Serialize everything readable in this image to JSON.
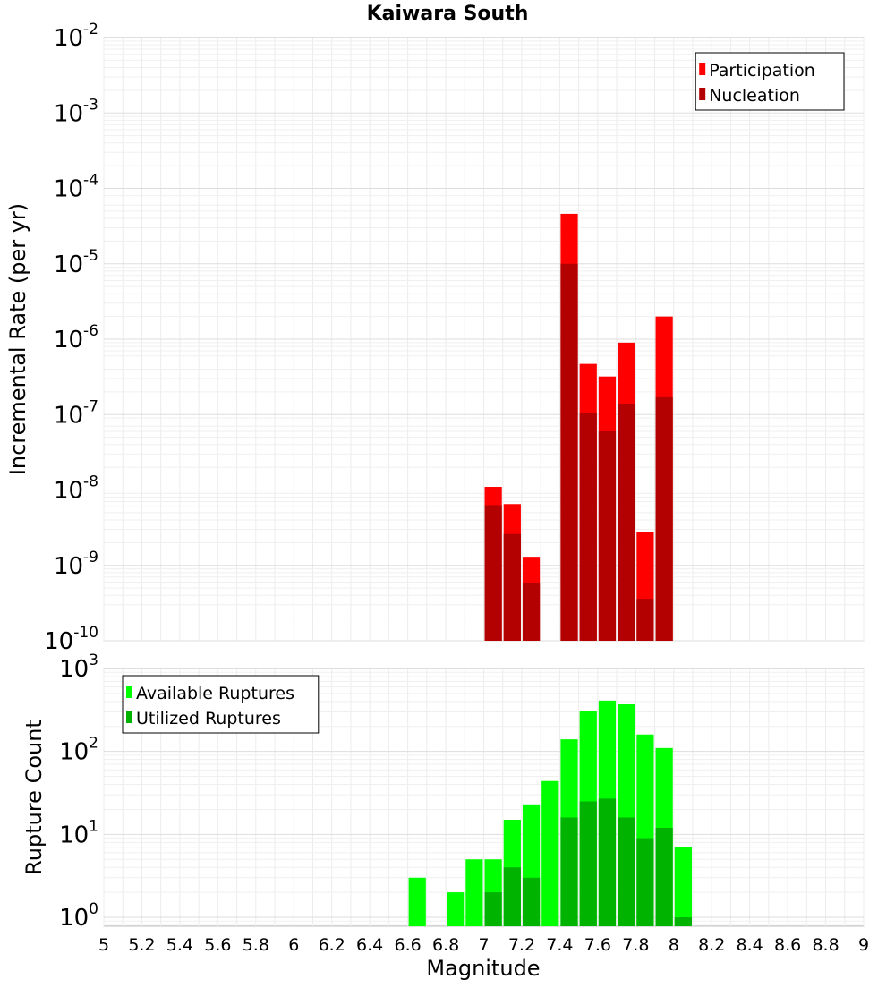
{
  "chart_data": [
    {
      "type": "bar",
      "title": "Kaiwara South",
      "xlabel": "",
      "ylabel": "Incremental Rate (per yr)",
      "yscale": "log",
      "ylim": [
        1e-10,
        0.01
      ],
      "xlim": [
        5,
        9
      ],
      "grid": true,
      "legend_position": "top-right",
      "bar_width": 0.1,
      "y_ticks": [
        {
          "base": "10",
          "exp": "-10",
          "value": 1e-10
        },
        {
          "base": "10",
          "exp": "-9",
          "value": 1e-09
        },
        {
          "base": "10",
          "exp": "-8",
          "value": 1e-08
        },
        {
          "base": "10",
          "exp": "-7",
          "value": 1e-07
        },
        {
          "base": "10",
          "exp": "-6",
          "value": 1e-06
        },
        {
          "base": "10",
          "exp": "-5",
          "value": 1e-05
        },
        {
          "base": "10",
          "exp": "-4",
          "value": 0.0001
        },
        {
          "base": "10",
          "exp": "-3",
          "value": 0.001
        },
        {
          "base": "10",
          "exp": "-2",
          "value": 0.01
        }
      ],
      "series": [
        {
          "name": "Participation",
          "color": "#ff0000",
          "x": [
            7.05,
            7.15,
            7.25,
            7.45,
            7.55,
            7.65,
            7.75,
            7.85,
            7.95
          ],
          "values": [
            1.1e-08,
            6.5e-09,
            1.3e-09,
            4.6e-05,
            4.7e-07,
            3.2e-07,
            9e-07,
            2.8e-09,
            2e-06
          ]
        },
        {
          "name": "Nucleation",
          "color": "#b30000",
          "x": [
            7.05,
            7.15,
            7.25,
            7.45,
            7.55,
            7.65,
            7.75,
            7.85,
            7.95
          ],
          "values": [
            6.3e-09,
            2.6e-09,
            5.8e-10,
            1e-05,
            1.05e-07,
            6e-08,
            1.4e-07,
            3.6e-10,
            1.7e-07
          ]
        }
      ]
    },
    {
      "type": "bar",
      "title": "",
      "xlabel": "Magnitude",
      "ylabel": "Rupture Count",
      "yscale": "log",
      "ylim": [
        0.78,
        1000
      ],
      "xlim": [
        5,
        9
      ],
      "grid": true,
      "legend_position": "top-left",
      "bar_width": 0.1,
      "x_ticks": [
        "5",
        "5.2",
        "5.4",
        "5.6",
        "5.8",
        "6",
        "6.2",
        "6.4",
        "6.6",
        "6.8",
        "7",
        "7.2",
        "7.4",
        "7.6",
        "7.8",
        "8",
        "8.2",
        "8.4",
        "8.6",
        "8.8",
        "9"
      ],
      "y_ticks": [
        {
          "base": "10",
          "exp": "0",
          "value": 1
        },
        {
          "base": "10",
          "exp": "1",
          "value": 10
        },
        {
          "base": "10",
          "exp": "2",
          "value": 100
        },
        {
          "base": "10",
          "exp": "3",
          "value": 1000
        }
      ],
      "series": [
        {
          "name": "Available Ruptures",
          "color": "#00ff00",
          "x": [
            6.65,
            6.85,
            6.95,
            7.05,
            7.15,
            7.25,
            7.35,
            7.45,
            7.55,
            7.65,
            7.75,
            7.85,
            7.95,
            8.05
          ],
          "values": [
            3,
            2,
            5,
            5,
            15,
            23,
            44,
            140,
            310,
            410,
            370,
            160,
            110,
            7
          ]
        },
        {
          "name": "Utilized Ruptures",
          "color": "#00b300",
          "x": [
            7.05,
            7.15,
            7.25,
            7.45,
            7.55,
            7.65,
            7.75,
            7.85,
            7.95,
            8.05
          ],
          "values": [
            2,
            4,
            3,
            16,
            25,
            27,
            16,
            9,
            12,
            1
          ]
        }
      ]
    }
  ]
}
